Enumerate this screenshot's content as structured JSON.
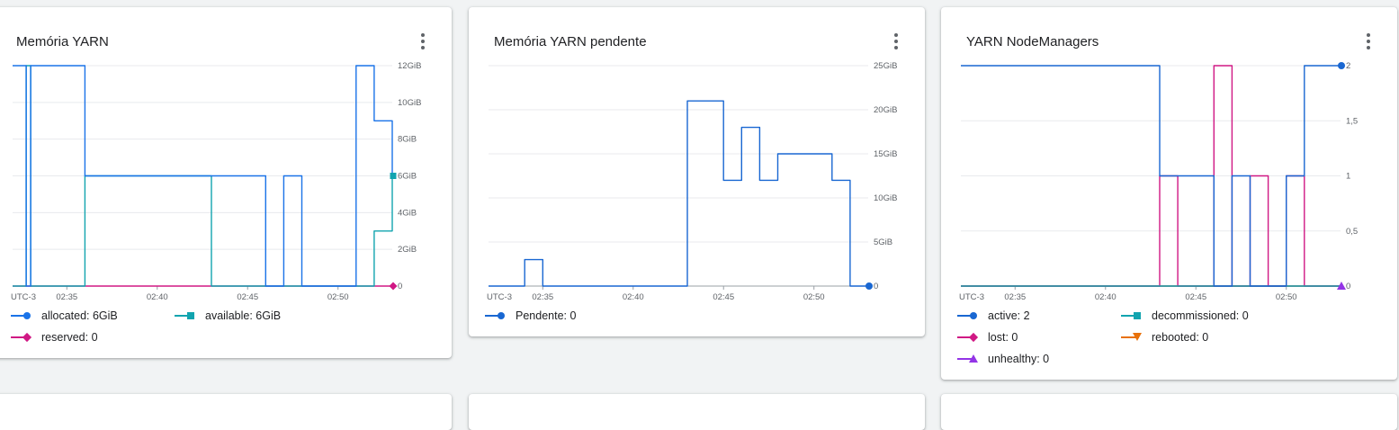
{
  "cards": [
    {
      "title": "Memória YARN",
      "legend": [
        {
          "label": "allocated: 6GiB",
          "color": "#1a73e8",
          "marker": "circle"
        },
        {
          "label": "available: 6GiB",
          "color": "#12a4af",
          "marker": "square"
        },
        {
          "label": "reserved: 0",
          "color": "#d01884",
          "marker": "diamond"
        }
      ]
    },
    {
      "title": "Memória YARN pendente",
      "legend": [
        {
          "label": "Pendente: 0",
          "color": "#1967d2",
          "marker": "circle"
        }
      ]
    },
    {
      "title": "YARN NodeManagers",
      "legend": [
        {
          "label": "active: 2",
          "color": "#1967d2",
          "marker": "circle"
        },
        {
          "label": "decommissioned: 0",
          "color": "#12a4af",
          "marker": "square"
        },
        {
          "label": "lost: 0",
          "color": "#d01884",
          "marker": "diamond"
        },
        {
          "label": "rebooted: 0",
          "color": "#e8710a",
          "marker": "tri-down"
        },
        {
          "label": "unhealthy: 0",
          "color": "#9334e6",
          "marker": "tri-up"
        }
      ]
    }
  ],
  "chart_data": [
    {
      "type": "line",
      "title": "Memória YARN",
      "x_label_tz": "UTC-3",
      "x_ticks": [
        "02:35",
        "02:40",
        "02:45",
        "02:50"
      ],
      "y_ticks": [
        "0",
        "2GiB",
        "4GiB",
        "6GiB",
        "8GiB",
        "10GiB",
        "12GiB"
      ],
      "ylim": [
        0,
        12
      ],
      "xlim": [
        "02:32",
        "02:53"
      ],
      "series": [
        {
          "name": "allocated",
          "color": "#1a73e8",
          "marker": "circle",
          "points": [
            [
              "02:32",
              12
            ],
            [
              "02:32.75",
              12
            ],
            [
              "02:32.75",
              0
            ],
            [
              "02:33",
              0
            ],
            [
              "02:33",
              12
            ],
            [
              "02:36",
              12
            ],
            [
              "02:36",
              6
            ],
            [
              "02:46",
              6
            ],
            [
              "02:46",
              0
            ],
            [
              "02:47",
              0
            ],
            [
              "02:47",
              6
            ],
            [
              "02:48",
              6
            ],
            [
              "02:48",
              0
            ],
            [
              "02:51",
              0
            ],
            [
              "02:51",
              12
            ],
            [
              "02:52",
              12
            ],
            [
              "02:52",
              9
            ],
            [
              "02:53",
              9
            ],
            [
              "02:53",
              6
            ]
          ]
        },
        {
          "name": "available",
          "color": "#12a4af",
          "marker": "square",
          "points": [
            [
              "02:32",
              0
            ],
            [
              "02:32.75",
              0
            ],
            [
              "02:32.75",
              12
            ],
            [
              "02:33",
              12
            ],
            [
              "02:33",
              0
            ],
            [
              "02:36",
              0
            ],
            [
              "02:36",
              6
            ],
            [
              "02:43",
              6
            ],
            [
              "02:43",
              0
            ],
            [
              "02:52",
              0
            ],
            [
              "02:52",
              3
            ],
            [
              "02:53",
              3
            ],
            [
              "02:53",
              6
            ]
          ]
        },
        {
          "name": "reserved",
          "color": "#d01884",
          "marker": "diamond",
          "points": [
            [
              "02:32",
              0
            ],
            [
              "02:53",
              0
            ]
          ]
        }
      ],
      "end_markers": [
        {
          "series": "available",
          "value": 6
        },
        {
          "series": "reserved",
          "value": 0
        }
      ]
    },
    {
      "type": "line",
      "title": "Memória YARN pendente",
      "x_label_tz": "UTC-3",
      "x_ticks": [
        "02:35",
        "02:40",
        "02:45",
        "02:50"
      ],
      "y_ticks": [
        "0",
        "5GiB",
        "10GiB",
        "15GiB",
        "20GiB",
        "25GiB"
      ],
      "ylim": [
        0,
        25
      ],
      "xlim": [
        "02:32",
        "02:53"
      ],
      "series": [
        {
          "name": "Pendente",
          "color": "#1967d2",
          "marker": "circle",
          "points": [
            [
              "02:32",
              0
            ],
            [
              "02:34",
              0
            ],
            [
              "02:34",
              3
            ],
            [
              "02:35",
              3
            ],
            [
              "02:35",
              0
            ],
            [
              "02:43",
              0
            ],
            [
              "02:43",
              21
            ],
            [
              "02:45",
              21
            ],
            [
              "02:45",
              12
            ],
            [
              "02:46",
              12
            ],
            [
              "02:46",
              18
            ],
            [
              "02:47",
              18
            ],
            [
              "02:47",
              12
            ],
            [
              "02:48",
              12
            ],
            [
              "02:48",
              15
            ],
            [
              "02:51",
              15
            ],
            [
              "02:51",
              12
            ],
            [
              "02:52",
              12
            ],
            [
              "02:52",
              0
            ],
            [
              "02:53",
              0
            ]
          ]
        }
      ],
      "end_markers": [
        {
          "series": "Pendente",
          "value": 0
        }
      ]
    },
    {
      "type": "line",
      "title": "YARN NodeManagers",
      "x_label_tz": "UTC-3",
      "x_ticks": [
        "02:35",
        "02:40",
        "02:45",
        "02:50"
      ],
      "y_ticks": [
        "0",
        "0,5",
        "1",
        "1,5",
        "2"
      ],
      "ylim": [
        0,
        2
      ],
      "xlim": [
        "02:32",
        "02:53"
      ],
      "series": [
        {
          "name": "active",
          "color": "#1967d2",
          "marker": "circle",
          "points": [
            [
              "02:32",
              2
            ],
            [
              "02:43",
              2
            ],
            [
              "02:43",
              1
            ],
            [
              "02:46",
              1
            ],
            [
              "02:46",
              0
            ],
            [
              "02:47",
              0
            ],
            [
              "02:47",
              1
            ],
            [
              "02:48",
              1
            ],
            [
              "02:48",
              0
            ],
            [
              "02:50",
              0
            ],
            [
              "02:50",
              1
            ],
            [
              "02:51",
              1
            ],
            [
              "02:51",
              2
            ],
            [
              "02:53",
              2
            ]
          ]
        },
        {
          "name": "decommissioned",
          "color": "#12a4af",
          "marker": "square",
          "points": [
            [
              "02:32",
              0
            ],
            [
              "02:53",
              0
            ]
          ]
        },
        {
          "name": "lost",
          "color": "#d01884",
          "marker": "diamond",
          "points": [
            [
              "02:32",
              0
            ],
            [
              "02:43",
              0
            ],
            [
              "02:43",
              1
            ],
            [
              "02:44",
              1
            ],
            [
              "02:44",
              0
            ],
            [
              "02:46",
              0
            ],
            [
              "02:46",
              2
            ],
            [
              "02:47",
              2
            ],
            [
              "02:47",
              0
            ],
            [
              "02:48",
              0
            ],
            [
              "02:48",
              1
            ],
            [
              "02:49",
              1
            ],
            [
              "02:49",
              0
            ],
            [
              "02:50",
              0
            ],
            [
              "02:50",
              1
            ],
            [
              "02:51",
              1
            ],
            [
              "02:51",
              0
            ],
            [
              "02:53",
              0
            ]
          ]
        },
        {
          "name": "rebooted",
          "color": "#e8710a",
          "marker": "tri-down",
          "points": [
            [
              "02:32",
              0
            ],
            [
              "02:53",
              0
            ]
          ]
        },
        {
          "name": "unhealthy",
          "color": "#9334e6",
          "marker": "tri-up",
          "points": [
            [
              "02:32",
              0
            ],
            [
              "02:53",
              0
            ]
          ]
        }
      ],
      "end_markers": [
        {
          "series": "active",
          "value": 2
        },
        {
          "series": "unhealthy",
          "value": 0
        }
      ]
    }
  ]
}
